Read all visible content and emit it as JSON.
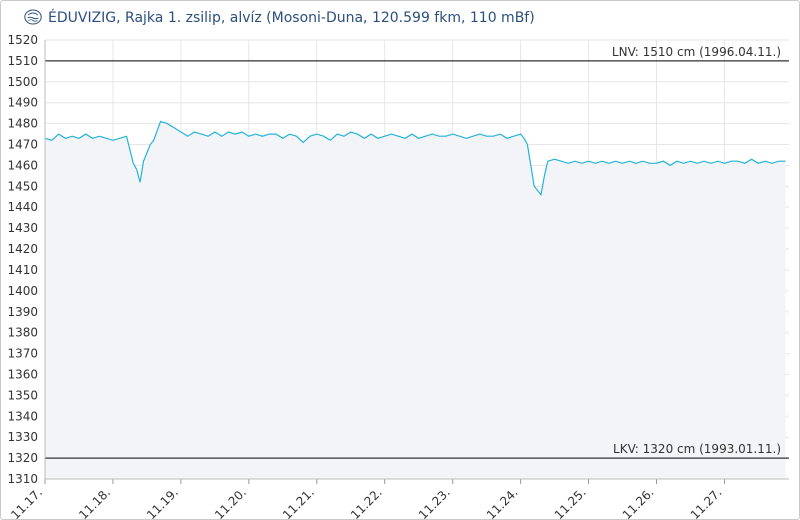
{
  "header": {
    "title": "ÉDUVIZIG, Rajka 1. zsilip, alvíz (Mosoni-Duna, 120.599 fkm, 110 mBf)"
  },
  "colors": {
    "line": "#23b3d8",
    "fill": "#f3f4f7",
    "grid": "#e6e6e6",
    "reference": "#333333",
    "title": "#2b4f7e",
    "text": "#333333"
  },
  "chart_data": {
    "type": "line",
    "title": "ÉDUVIZIG, Rajka 1. zsilip, alvíz (Mosoni-Duna, 120.599 fkm, 110 mBf)",
    "xlabel": "",
    "ylabel": "",
    "ylim": [
      1310,
      1520
    ],
    "xlim": [
      0,
      10.95
    ],
    "y_ticks": [
      1310,
      1320,
      1330,
      1340,
      1350,
      1360,
      1370,
      1380,
      1390,
      1400,
      1410,
      1420,
      1430,
      1440,
      1450,
      1460,
      1470,
      1480,
      1490,
      1500,
      1510,
      1520
    ],
    "x_ticks": [
      0,
      1,
      2,
      3,
      4,
      5,
      6,
      7,
      8,
      9,
      10
    ],
    "x_tick_labels": [
      "11.17.",
      "11.18.",
      "11.19.",
      "11.20.",
      "11.21.",
      "11.22.",
      "11.23.",
      "11.24.",
      "11.25.",
      "11.26.",
      "11.27."
    ],
    "grid": true,
    "legend": "none",
    "reference_lines": [
      {
        "value": 1510,
        "label": "LNV: 1510 cm (1996.04.11.)"
      },
      {
        "value": 1320,
        "label": "LKV: 1320 cm (1993.01.11.)"
      }
    ],
    "series": [
      {
        "x": [
          0.0,
          0.1,
          0.2,
          0.3,
          0.4,
          0.5,
          0.6,
          0.7,
          0.8,
          0.9,
          1.0,
          1.1,
          1.2,
          1.3,
          1.35,
          1.4,
          1.45,
          1.5,
          1.55,
          1.6,
          1.7,
          1.8,
          1.85,
          1.9,
          2.0,
          2.1,
          2.2,
          2.3,
          2.4,
          2.5,
          2.6,
          2.7,
          2.8,
          2.9,
          3.0,
          3.1,
          3.2,
          3.3,
          3.4,
          3.5,
          3.6,
          3.7,
          3.8,
          3.9,
          4.0,
          4.1,
          4.2,
          4.3,
          4.4,
          4.5,
          4.6,
          4.7,
          4.8,
          4.9,
          5.0,
          5.1,
          5.2,
          5.3,
          5.4,
          5.5,
          5.6,
          5.7,
          5.8,
          5.9,
          6.0,
          6.1,
          6.2,
          6.3,
          6.4,
          6.5,
          6.6,
          6.7,
          6.8,
          6.9,
          7.0,
          7.05,
          7.1,
          7.15,
          7.2,
          7.25,
          7.3,
          7.35,
          7.4,
          7.5,
          7.6,
          7.7,
          7.8,
          7.9,
          8.0,
          8.1,
          8.2,
          8.3,
          8.4,
          8.5,
          8.6,
          8.7,
          8.8,
          8.9,
          9.0,
          9.1,
          9.2,
          9.3,
          9.4,
          9.5,
          9.6,
          9.7,
          9.8,
          9.9,
          10.0,
          10.1,
          10.2,
          10.3,
          10.4,
          10.5,
          10.6,
          10.7,
          10.8,
          10.9
        ],
        "y": [
          1473,
          1472,
          1475,
          1473,
          1474,
          1473,
          1475,
          1473,
          1474,
          1473,
          1472,
          1473,
          1474,
          1461,
          1458,
          1452,
          1462,
          1466,
          1470,
          1472,
          1481,
          1480,
          1479,
          1478,
          1476,
          1474,
          1476,
          1475,
          1474,
          1476,
          1474,
          1476,
          1475,
          1476,
          1474,
          1475,
          1474,
          1475,
          1475,
          1473,
          1475,
          1474,
          1471,
          1474,
          1475,
          1474,
          1472,
          1475,
          1474,
          1476,
          1475,
          1473,
          1475,
          1473,
          1474,
          1475,
          1474,
          1473,
          1475,
          1473,
          1474,
          1475,
          1474,
          1474,
          1475,
          1474,
          1473,
          1474,
          1475,
          1474,
          1474,
          1475,
          1473,
          1474,
          1475,
          1473,
          1470,
          1460,
          1450,
          1448,
          1446,
          1455,
          1462,
          1463,
          1462,
          1461,
          1462,
          1461,
          1462,
          1461,
          1462,
          1461,
          1462,
          1461,
          1462,
          1461,
          1462,
          1461,
          1461,
          1462,
          1460,
          1462,
          1461,
          1462,
          1461,
          1462,
          1461,
          1462,
          1461,
          1462,
          1462,
          1461,
          1463,
          1461,
          1462,
          1461,
          1462,
          1462
        ]
      }
    ]
  }
}
